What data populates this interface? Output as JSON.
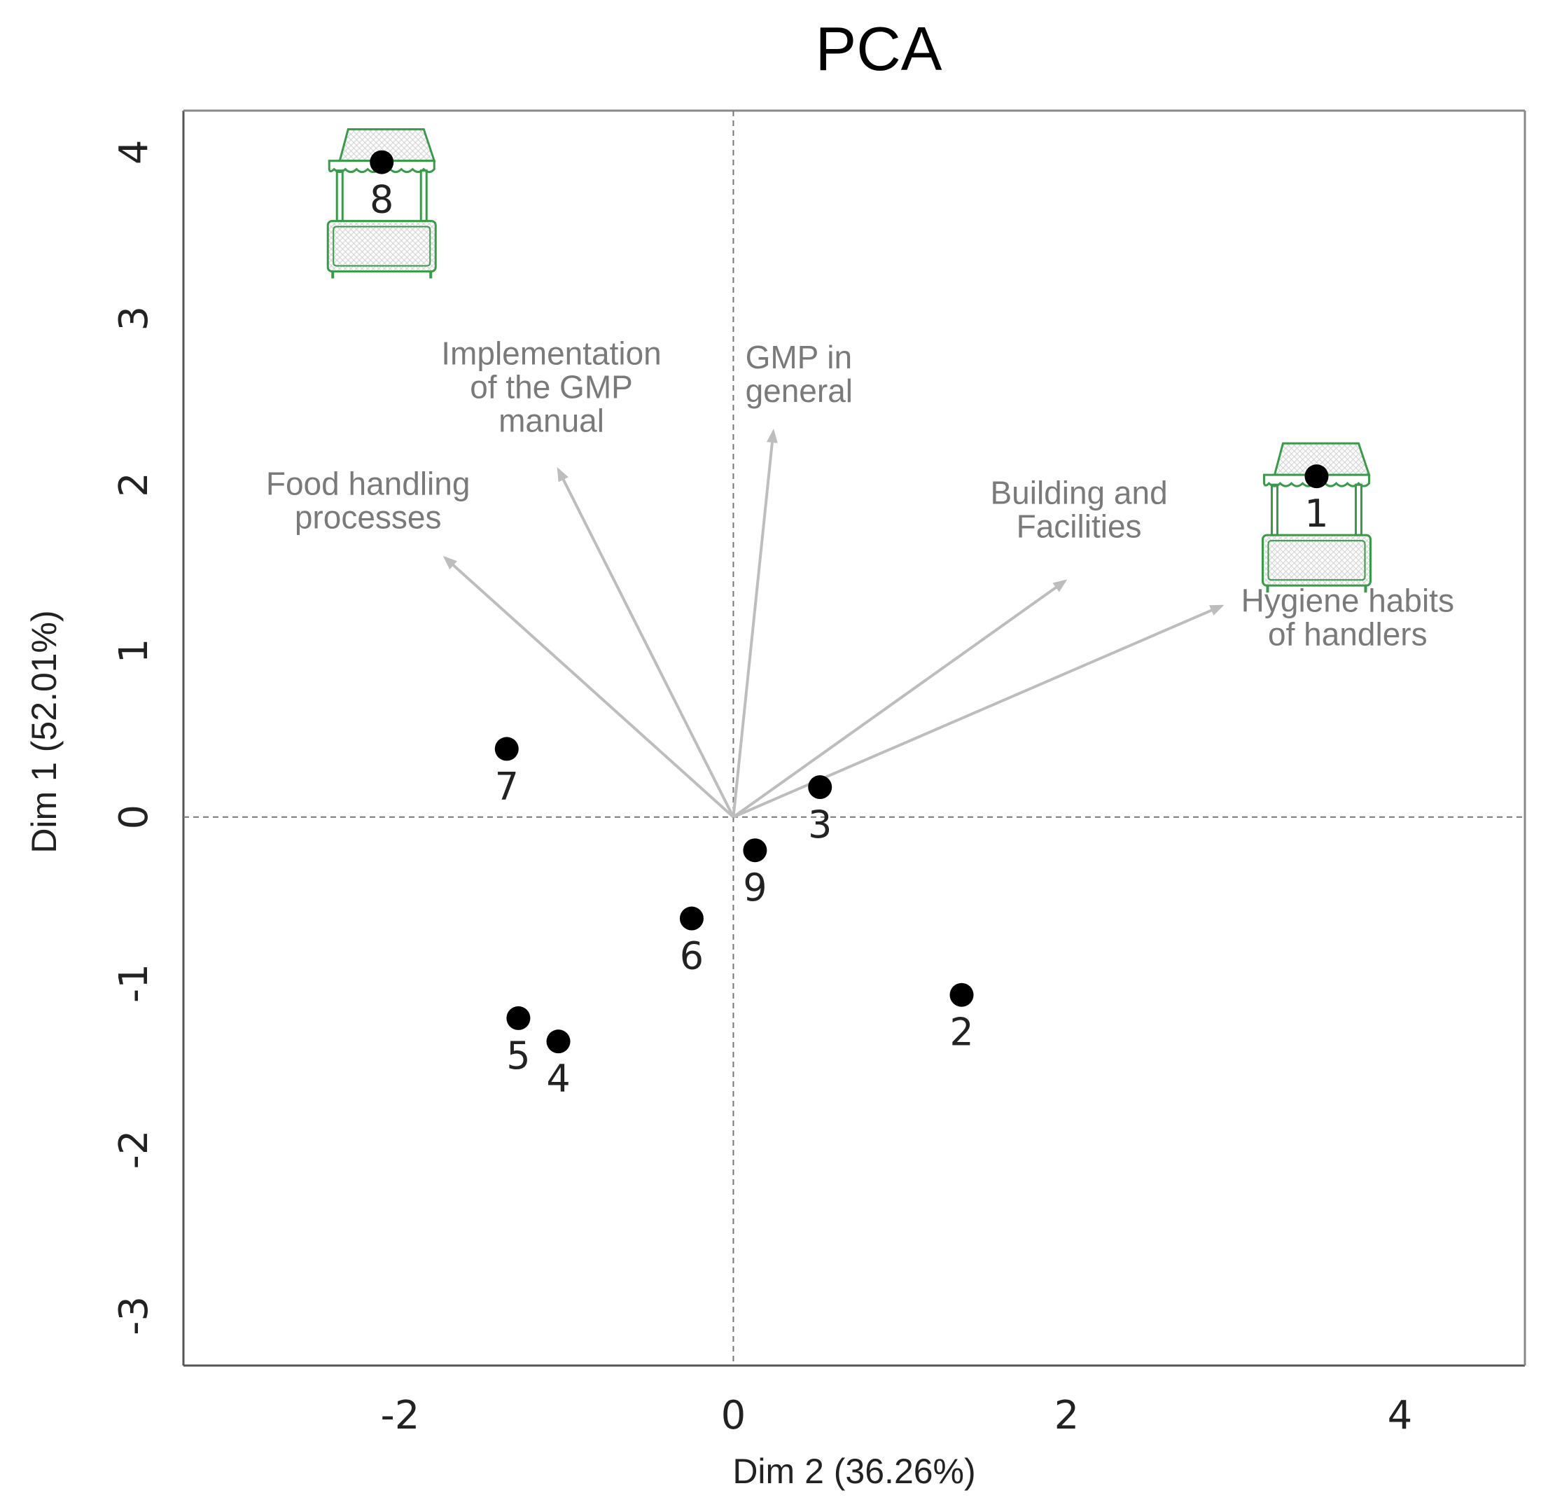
{
  "chart_data": {
    "type": "scatter",
    "title": "PCA",
    "xlabel": "Dim 2 (36.26%)",
    "ylabel": "Dim 1 (52.01%)",
    "xlim": [
      -3.3,
      4.75
    ],
    "ylim": [
      -3.3,
      4.25
    ],
    "xticks": [
      -2,
      0,
      2,
      4
    ],
    "yticks": [
      -3,
      -2,
      -1,
      0,
      1,
      2,
      3,
      4
    ],
    "reference_lines": {
      "x": 0,
      "y": 0,
      "style": "dashed"
    },
    "points": [
      {
        "label": "1",
        "x": 3.5,
        "y": 2.05,
        "highlight": true
      },
      {
        "label": "2",
        "x": 1.37,
        "y": -1.07,
        "highlight": false
      },
      {
        "label": "3",
        "x": 0.52,
        "y": 0.18,
        "highlight": false
      },
      {
        "label": "4",
        "x": -1.05,
        "y": -1.35,
        "highlight": false
      },
      {
        "label": "5",
        "x": -1.29,
        "y": -1.21,
        "highlight": false
      },
      {
        "label": "6",
        "x": -0.25,
        "y": -0.61,
        "highlight": false
      },
      {
        "label": "7",
        "x": -1.36,
        "y": 0.41,
        "highlight": false
      },
      {
        "label": "8",
        "x": -2.11,
        "y": 3.94,
        "highlight": true
      },
      {
        "label": "9",
        "x": 0.13,
        "y": -0.2,
        "highlight": false
      }
    ],
    "variables": [
      {
        "name": "Food handling processes",
        "lines": [
          "Food handling",
          "processes"
        ],
        "x": -1.73,
        "y": 1.56
      },
      {
        "name": "Implementation of the GMP manual",
        "lines": [
          "Implementation",
          "of the GMP",
          "manual"
        ],
        "x": -1.05,
        "y": 2.09
      },
      {
        "name": "GMP in general",
        "lines": [
          "GMP in",
          "general"
        ],
        "x": 0.24,
        "y": 2.32
      },
      {
        "name": "Building and Facilities",
        "lines": [
          "Building and",
          "Facilities"
        ],
        "x": 1.99,
        "y": 1.42
      },
      {
        "name": "Hygiene habits of handlers",
        "lines": [
          "Hygiene habits",
          "of handlers"
        ],
        "x": 2.93,
        "y": 1.27
      }
    ],
    "colors": {
      "points": "#000000",
      "arrows": "#bdbdbd",
      "variable_text": "#7a7a7a",
      "highlight_icon": "#3a9a4a",
      "axes": "#555555"
    },
    "highlight_icon": "market-stall-icon"
  }
}
